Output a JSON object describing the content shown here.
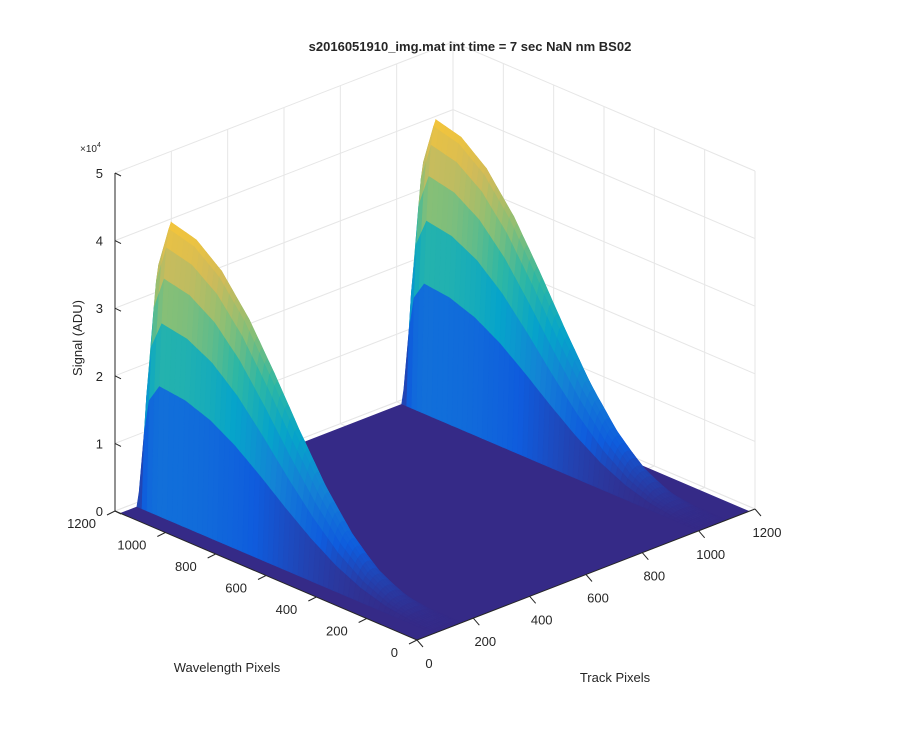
{
  "chart_data": {
    "type": "surface3d",
    "title": "s2016051910_img.mat int time = 7 sec  NaN nm BS02",
    "xlabel": "Track Pixels",
    "ylabel": "Wavelength Pixels",
    "zlabel": "Signal (ADU)",
    "z_exponent_label": "×10",
    "z_exponent_power": "4",
    "xlim": [
      0,
      1200
    ],
    "ylim": [
      0,
      1200
    ],
    "zlim": [
      0,
      50000
    ],
    "x_ticks": [
      "0",
      "200",
      "400",
      "600",
      "800",
      "1000",
      "1200"
    ],
    "y_ticks": [
      "0",
      "200",
      "400",
      "600",
      "800",
      "1000",
      "1200"
    ],
    "z_ticks": [
      "0",
      "1",
      "2",
      "3",
      "4",
      "5"
    ],
    "grid": true,
    "colormap": "parula",
    "colormap_stops": [
      "#352a87",
      "#0f5cdd",
      "#1481d6",
      "#06a4ca",
      "#2eb7a4",
      "#87bf77",
      "#d1bb59",
      "#fec832",
      "#f9fb0e"
    ],
    "series": [
      {
        "track_center": 110,
        "track_halfwidth": 50,
        "wavelength": [
          0,
          100,
          200,
          300,
          400,
          500,
          600,
          700,
          800,
          900,
          1000,
          1100,
          1150,
          1180
        ],
        "signal": [
          0,
          300,
          1500,
          4000,
          8000,
          13500,
          20000,
          27000,
          33500,
          38500,
          41500,
          42500,
          35000,
          5000
        ]
      },
      {
        "track_center": 1050,
        "track_halfwidth": 50,
        "wavelength": [
          0,
          100,
          200,
          300,
          400,
          500,
          600,
          700,
          800,
          900,
          1000,
          1100,
          1150,
          1180
        ],
        "signal": [
          0,
          300,
          1500,
          4000,
          8000,
          13500,
          20000,
          27000,
          33500,
          38500,
          41500,
          42500,
          35000,
          5000
        ]
      }
    ]
  }
}
